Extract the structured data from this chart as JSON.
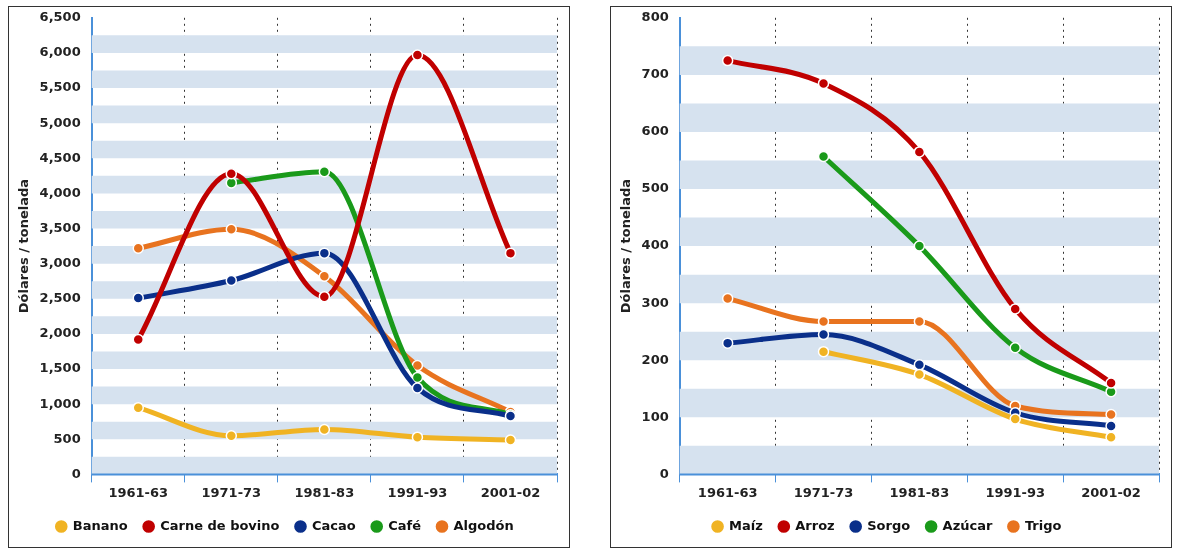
{
  "chart_data": [
    {
      "type": "line",
      "ylabel": "Dólares / tonelada",
      "categories": [
        "1961-63",
        "1971-73",
        "1981-83",
        "1991-93",
        "2001-02"
      ],
      "ylim": [
        0,
        6500
      ],
      "yticks": [
        {
          "value": 0,
          "label": "0"
        },
        {
          "value": 500,
          "label": "500"
        },
        {
          "value": 1000,
          "label": "1,000"
        },
        {
          "value": 1500,
          "label": "1,500"
        },
        {
          "value": 2000,
          "label": "2,000"
        },
        {
          "value": 2500,
          "label": "2,500"
        },
        {
          "value": 3000,
          "label": "3,000"
        },
        {
          "value": 3500,
          "label": "3,500"
        },
        {
          "value": 4000,
          "label": "4,000"
        },
        {
          "value": 4500,
          "label": "4,500"
        },
        {
          "value": 5000,
          "label": "5,000"
        },
        {
          "value": 5500,
          "label": "5,500"
        },
        {
          "value": 6000,
          "label": "6,000"
        },
        {
          "value": 6500,
          "label": "6,500"
        }
      ],
      "grid": "x",
      "legend": "bottom",
      "marker": "circle",
      "line_style": "solid",
      "bands": [
        {
          "axis": "y",
          "from": 0,
          "to": 250,
          "color": "#d6e2ef"
        },
        {
          "axis": "y",
          "from": 500,
          "to": 750,
          "color": "#d6e2ef"
        },
        {
          "axis": "y",
          "from": 1000,
          "to": 1250,
          "color": "#d6e2ef"
        },
        {
          "axis": "y",
          "from": 1500,
          "to": 1750,
          "color": "#d6e2ef"
        },
        {
          "axis": "y",
          "from": 2000,
          "to": 2250,
          "color": "#d6e2ef"
        },
        {
          "axis": "y",
          "from": 2500,
          "to": 2750,
          "color": "#d6e2ef"
        },
        {
          "axis": "y",
          "from": 3000,
          "to": 3250,
          "color": "#d6e2ef"
        },
        {
          "axis": "y",
          "from": 3500,
          "to": 3750,
          "color": "#d6e2ef"
        },
        {
          "axis": "y",
          "from": 4000,
          "to": 4250,
          "color": "#d6e2ef"
        },
        {
          "axis": "y",
          "from": 4500,
          "to": 4750,
          "color": "#d6e2ef"
        },
        {
          "axis": "y",
          "from": 5000,
          "to": 5250,
          "color": "#d6e2ef"
        },
        {
          "axis": "y",
          "from": 5500,
          "to": 5750,
          "color": "#d6e2ef"
        },
        {
          "axis": "y",
          "from": 6000,
          "to": 6250,
          "color": "#d6e2ef"
        }
      ],
      "series": [
        {
          "name": "Banano",
          "color": "#f0b323",
          "values": [
            950,
            550,
            640,
            530,
            490
          ]
        },
        {
          "name": "Carne de bovino",
          "color": "#c00000",
          "values": [
            1920,
            4280,
            2530,
            5970,
            3150
          ]
        },
        {
          "name": "Cacao",
          "color": "#0a2f8a",
          "values": [
            2510,
            2760,
            3150,
            1230,
            830
          ]
        },
        {
          "name": "Café",
          "color": "#1a9a1a",
          "values": [
            null,
            4150,
            4310,
            1380,
            850
          ]
        },
        {
          "name": "Algodón",
          "color": "#e8731f",
          "values": [
            3220,
            3490,
            2820,
            1550,
            890
          ]
        }
      ]
    },
    {
      "type": "line",
      "ylabel": "Dólares / tonelada",
      "categories": [
        "1961-63",
        "1971-73",
        "1981-83",
        "1991-93",
        "2001-02"
      ],
      "ylim": [
        0,
        800
      ],
      "yticks": [
        0,
        100,
        200,
        300,
        400,
        500,
        600,
        700,
        800
      ],
      "grid": "x",
      "legend": "bottom",
      "marker": "circle",
      "line_style": "solid",
      "bands": [
        {
          "axis": "y",
          "from": 0,
          "to": 50,
          "color": "#d6e2ef"
        },
        {
          "axis": "y",
          "from": 100,
          "to": 150,
          "color": "#d6e2ef"
        },
        {
          "axis": "y",
          "from": 200,
          "to": 250,
          "color": "#d6e2ef"
        },
        {
          "axis": "y",
          "from": 300,
          "to": 350,
          "color": "#d6e2ef"
        },
        {
          "axis": "y",
          "from": 400,
          "to": 450,
          "color": "#d6e2ef"
        },
        {
          "axis": "y",
          "from": 500,
          "to": 550,
          "color": "#d6e2ef"
        },
        {
          "axis": "y",
          "from": 600,
          "to": 650,
          "color": "#d6e2ef"
        },
        {
          "axis": "y",
          "from": 700,
          "to": 750,
          "color": "#d6e2ef"
        }
      ],
      "series": [
        {
          "name": "Maíz",
          "color": "#f0b323",
          "values": [
            null,
            215,
            175,
            97,
            65
          ]
        },
        {
          "name": "Arroz",
          "color": "#c00000",
          "values": [
            725,
            685,
            565,
            290,
            160
          ]
        },
        {
          "name": "Sorgo",
          "color": "#0a2f8a",
          "values": [
            230,
            245,
            192,
            108,
            85
          ]
        },
        {
          "name": "Azúcar",
          "color": "#1a9a1a",
          "values": [
            null,
            557,
            400,
            222,
            145
          ]
        },
        {
          "name": "Trigo",
          "color": "#e8731f",
          "values": [
            308,
            268,
            268,
            120,
            105
          ]
        }
      ]
    }
  ]
}
